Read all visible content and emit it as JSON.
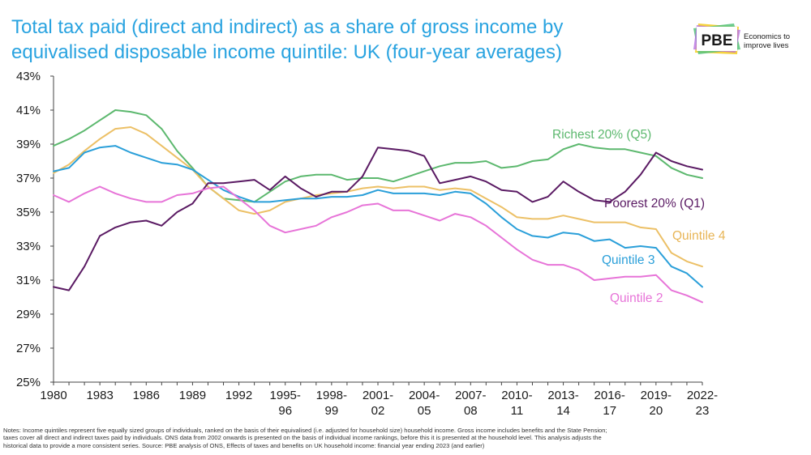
{
  "header": {
    "title_line1": "Total tax paid (direct and indirect) as a share of gross income by",
    "title_line2": "equivalised disposable income quintile: UK (four-year averages)"
  },
  "logo": {
    "text": "PBE",
    "tagline_line1": "Economics to",
    "tagline_line2": "improve lives"
  },
  "notes": {
    "line1": "Notes: Income quintiles represent five equally sized groups of individuals, ranked on the basis of their equivalised (i.e. adjusted for household size) household income. Gross income includes benefits and the State Pension;",
    "line2": "taxes cover all direct and indirect taxes paid by individuals. ONS data from 2002 onwards is presented on the basis of individual income rankings, before this it is presented at the household level. This analysis adjusts the",
    "line3": "historical data to provide a more consistent series. Source: PBE analysis of ONS, Effects of taxes and benefits on UK household income: financial year ending 2023 (and earlier)"
  },
  "chart_data": {
    "type": "line",
    "title": "Total tax paid (direct and indirect) as a share of gross income by equivalised disposable income quintile: UK (four-year averages)",
    "xlabel": "",
    "ylabel": "",
    "ylim": [
      25,
      43
    ],
    "yticks": [
      25,
      27,
      29,
      31,
      33,
      35,
      37,
      39,
      41,
      43
    ],
    "ytick_suffix": "%",
    "grid": false,
    "x_tick_labels": [
      {
        "i": 0,
        "l1": "1980",
        "l2": ""
      },
      {
        "i": 3,
        "l1": "1983",
        "l2": ""
      },
      {
        "i": 6,
        "l1": "1986",
        "l2": ""
      },
      {
        "i": 9,
        "l1": "1989",
        "l2": ""
      },
      {
        "i": 12,
        "l1": "1992",
        "l2": ""
      },
      {
        "i": 15,
        "l1": "1995-",
        "l2": "96"
      },
      {
        "i": 18,
        "l1": "1998-",
        "l2": "99"
      },
      {
        "i": 21,
        "l1": "2001-",
        "l2": "02"
      },
      {
        "i": 24,
        "l1": "2004-",
        "l2": "05"
      },
      {
        "i": 27,
        "l1": "2007-",
        "l2": "08"
      },
      {
        "i": 30,
        "l1": "2010-",
        "l2": "11"
      },
      {
        "i": 33,
        "l1": "2013-",
        "l2": "14"
      },
      {
        "i": 36,
        "l1": "2016-",
        "l2": "17"
      },
      {
        "i": 39,
        "l1": "2019-",
        "l2": "20"
      },
      {
        "i": 42,
        "l1": "2022-",
        "l2": "23"
      }
    ],
    "series": [
      {
        "name": "Richest 20% (Q5)",
        "color": "#5cb86e",
        "values": [
          38.9,
          39.3,
          39.8,
          40.4,
          41.0,
          40.9,
          40.7,
          39.9,
          38.6,
          37.6,
          36.5,
          35.8,
          35.7,
          35.6,
          36.2,
          36.8,
          37.1,
          37.2,
          37.2,
          36.9,
          37.0,
          37.0,
          36.8,
          37.1,
          37.4,
          37.7,
          37.9,
          37.9,
          38.0,
          37.6,
          37.7,
          38.0,
          38.1,
          38.7,
          39.0,
          38.8,
          38.7,
          38.7,
          38.5,
          38.3,
          37.6,
          37.2,
          37.0
        ]
      },
      {
        "name": "Quintile 4",
        "color": "#ecc066",
        "values": [
          37.3,
          37.8,
          38.6,
          39.3,
          39.9,
          40.0,
          39.6,
          38.9,
          38.2,
          37.5,
          36.5,
          35.8,
          35.1,
          34.9,
          35.1,
          35.6,
          35.8,
          36.0,
          36.1,
          36.2,
          36.4,
          36.5,
          36.4,
          36.5,
          36.5,
          36.3,
          36.4,
          36.3,
          35.8,
          35.3,
          34.7,
          34.6,
          34.6,
          34.8,
          34.6,
          34.4,
          34.4,
          34.4,
          34.1,
          34.0,
          32.6,
          32.1,
          31.8
        ]
      },
      {
        "name": "Quintile 3",
        "color": "#2a9fd9",
        "values": [
          37.4,
          37.6,
          38.5,
          38.8,
          38.9,
          38.5,
          38.2,
          37.9,
          37.8,
          37.5,
          36.9,
          36.3,
          35.9,
          35.6,
          35.6,
          35.7,
          35.8,
          35.8,
          35.9,
          35.9,
          36.0,
          36.3,
          36.1,
          36.1,
          36.1,
          36.0,
          36.2,
          36.1,
          35.5,
          34.7,
          34.0,
          33.6,
          33.5,
          33.8,
          33.7,
          33.3,
          33.4,
          32.9,
          33.0,
          32.9,
          31.8,
          31.4,
          30.6
        ]
      },
      {
        "name": "Poorest 20% (Q1)",
        "color": "#5a1a63",
        "values": [
          30.6,
          30.4,
          31.8,
          33.6,
          34.1,
          34.4,
          34.5,
          34.2,
          35.0,
          35.5,
          36.7,
          36.7,
          36.8,
          36.9,
          36.3,
          37.1,
          36.4,
          35.9,
          36.2,
          36.2,
          37.1,
          38.8,
          38.7,
          38.6,
          38.3,
          36.7,
          36.9,
          37.1,
          36.8,
          36.3,
          36.2,
          35.6,
          35.9,
          36.8,
          36.2,
          35.7,
          35.6,
          36.2,
          37.2,
          38.5,
          38.0,
          37.7,
          37.5
        ]
      },
      {
        "name": "Quintile 2",
        "color": "#e774d8",
        "values": [
          36.0,
          35.6,
          36.1,
          36.5,
          36.1,
          35.8,
          35.6,
          35.6,
          36.0,
          36.1,
          36.4,
          36.5,
          35.8,
          35.1,
          34.2,
          33.8,
          34.0,
          34.2,
          34.7,
          35.0,
          35.4,
          35.5,
          35.1,
          35.1,
          34.8,
          34.5,
          34.9,
          34.7,
          34.2,
          33.5,
          32.8,
          32.2,
          31.9,
          31.9,
          31.6,
          31.0,
          31.1,
          31.2,
          31.2,
          31.3,
          30.4,
          30.1,
          29.7
        ]
      }
    ],
    "series_labels": [
      {
        "text": "Richest 20% (Q5)",
        "color": "#5cb86e"
      },
      {
        "text": "Poorest 20% (Q1)",
        "color": "#5a1a63"
      },
      {
        "text": "Quintile 4",
        "color": "#e8b556"
      },
      {
        "text": "Quintile 3",
        "color": "#2a9fd9"
      },
      {
        "text": "Quintile 2",
        "color": "#e774d8"
      }
    ]
  }
}
